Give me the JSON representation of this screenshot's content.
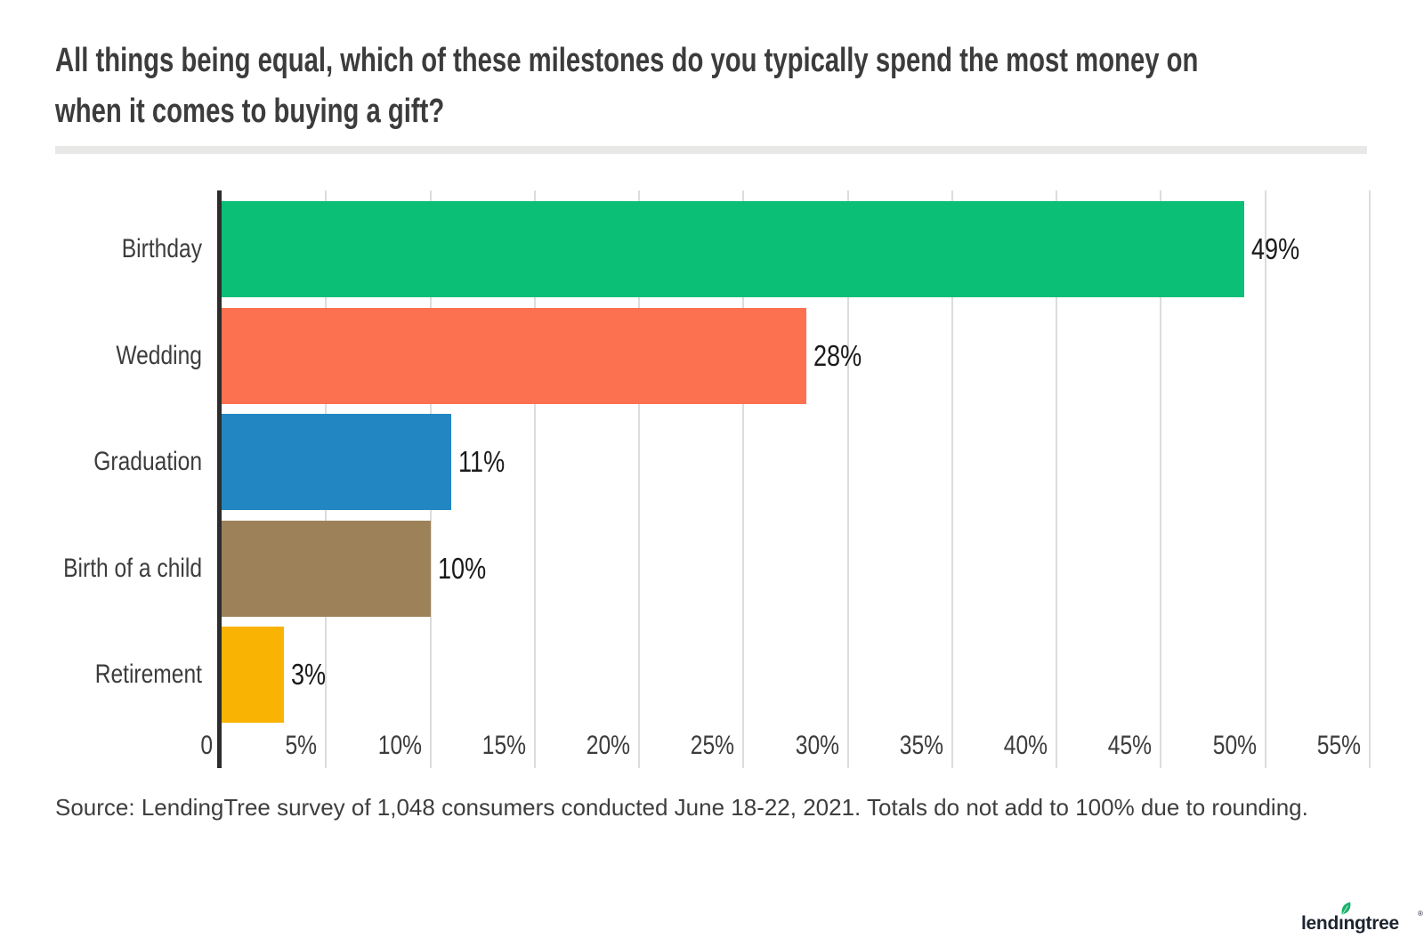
{
  "title": {
    "lines": [
      "All things being equal, which of these milestones do you typically spend the most money on",
      "when it comes to buying a gift?"
    ]
  },
  "chart_data": {
    "type": "bar",
    "orientation": "horizontal",
    "title": "All things being equal, which of these milestones do you typically spend the most money on when it comes to buying a gift?",
    "categories": [
      "Birthday",
      "Wedding",
      "Graduation",
      "Birth of a child",
      "Retirement"
    ],
    "values": [
      49,
      28,
      11,
      10,
      3
    ],
    "value_labels": [
      "49%",
      "28%",
      "11%",
      "10%",
      "3%"
    ],
    "bar_colors": [
      "#0bbf77",
      "#fc7150",
      "#2186c1",
      "#9d8259",
      "#f9b303"
    ],
    "x_axis": {
      "range": [
        0,
        55
      ],
      "unit": "%",
      "ticks": [
        0,
        5,
        10,
        15,
        20,
        25,
        30,
        35,
        40,
        45,
        50,
        55
      ],
      "tick_labels": [
        "0",
        "5%",
        "10%",
        "15%",
        "20%",
        "25%",
        "30%",
        "35%",
        "40%",
        "45%",
        "50%",
        "55%"
      ]
    },
    "grid": true,
    "legend": false
  },
  "source_note": "Source: LendingTree survey of 1,048 consumers conducted June 18-22, 2021. Totals do not add to 100% due to rounding.",
  "logo": {
    "text": "lendingtree",
    "registered": "®"
  },
  "colors": {
    "grid_line": "#dcdcdc",
    "axis_line": "#2d2d2d",
    "title_text": "#3c3c3c",
    "label_text": "#3c3c3c",
    "value_text": "#1a1a1a",
    "divider": "#e8e8e6",
    "logo_text": "#1c2430",
    "logo_leaf": "#17b26a",
    "background": "#ffffff"
  }
}
